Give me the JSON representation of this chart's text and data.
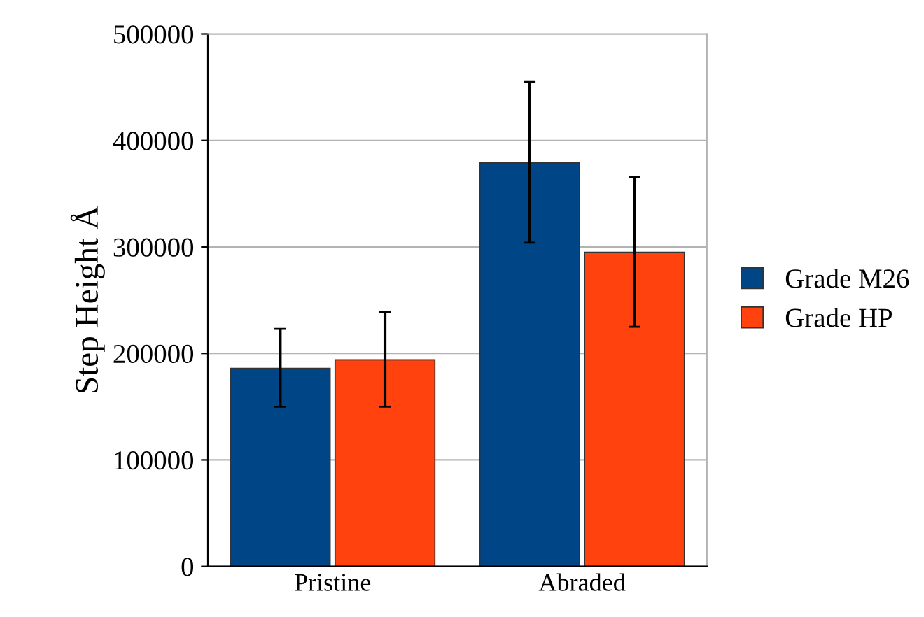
{
  "chart_data": {
    "type": "bar",
    "ylabel": "Step Height Å",
    "categories": [
      "Pristine",
      "Abraded"
    ],
    "series": [
      {
        "name": "Grade M26",
        "color": "#004586",
        "values": [
          186000,
          379000
        ],
        "errors": [
          [
            150000,
            223000
          ],
          [
            304000,
            455000
          ]
        ]
      },
      {
        "name": "Grade HP",
        "color": "#ff420e",
        "values": [
          194000,
          295000
        ],
        "errors": [
          [
            150000,
            239000
          ],
          [
            225000,
            366000
          ]
        ]
      }
    ],
    "ylim": [
      0,
      500000
    ],
    "yticks": [
      0,
      100000,
      200000,
      300000,
      400000,
      500000
    ],
    "grid": "y",
    "legend": "right"
  }
}
